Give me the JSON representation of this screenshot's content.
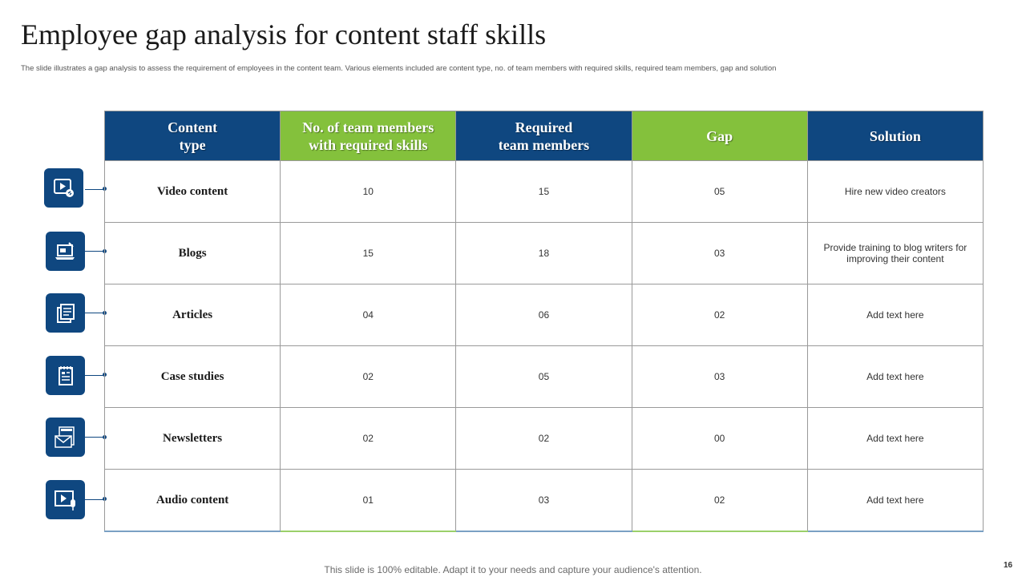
{
  "title": "Employee gap analysis for content staff skills",
  "subtitle": "The slide illustrates a gap analysis to assess the requirement of employees in the content team. Various elements included are content type, no. of team members with required skills, required team members, gap and solution",
  "table": {
    "headers": [
      [
        "Content",
        "type"
      ],
      [
        "No. of team members",
        "with required skills"
      ],
      [
        "Required",
        "team members"
      ],
      [
        "Gap"
      ],
      [
        "Solution"
      ]
    ],
    "rows": [
      {
        "type": "Video content",
        "have": "10",
        "required": "15",
        "gap": "05",
        "solution": "Hire new video creators",
        "icon": "video-play-icon"
      },
      {
        "type": "Blogs",
        "have": "15",
        "required": "18",
        "gap": "03",
        "solution": "Provide training to blog writers for improving their content",
        "icon": "blog-laptop-icon"
      },
      {
        "type": "Articles",
        "have": "04",
        "required": "06",
        "gap": "02",
        "solution": "Add text here",
        "icon": "article-document-icon"
      },
      {
        "type": "Case studies",
        "have": "02",
        "required": "05",
        "gap": "03",
        "solution": "Add text here",
        "icon": "case-study-notepad-icon"
      },
      {
        "type": "Newsletters",
        "have": "02",
        "required": "02",
        "gap": "00",
        "solution": "Add text here",
        "icon": "newsletter-envelope-icon"
      },
      {
        "type": "Audio content",
        "have": "01",
        "required": "03",
        "gap": "02",
        "solution": "Add text here",
        "icon": "audio-microphone-icon"
      }
    ]
  },
  "footer": "This slide is 100% editable. Adapt it to your needs and capture your audience's attention.",
  "page_number": "16",
  "colors": {
    "header_blue": "#0f4780",
    "header_green": "#84c13c"
  }
}
